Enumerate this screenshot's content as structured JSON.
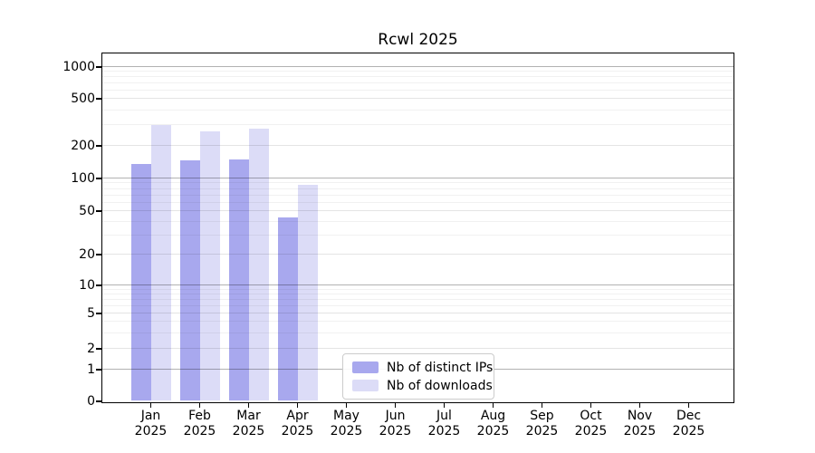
{
  "title": "Rcwl 2025",
  "chart_data": {
    "type": "bar",
    "title": "Rcwl 2025",
    "categories": [
      "Jan",
      "Feb",
      "Mar",
      "Apr",
      "May",
      "Jun",
      "Jul",
      "Aug",
      "Sep",
      "Oct",
      "Nov",
      "Dec"
    ],
    "x_year": "2025",
    "series": [
      {
        "name": "Nb of distinct IPs",
        "color": "#a8a8ee",
        "values": [
          133,
          144,
          147,
          43,
          0,
          0,
          0,
          0,
          0,
          0,
          0,
          0
        ]
      },
      {
        "name": "Nb of downloads",
        "color": "#dcdcf7",
        "values": [
          295,
          260,
          275,
          85,
          0,
          0,
          0,
          0,
          0,
          0,
          0,
          0
        ]
      }
    ],
    "yscale": "symlog",
    "yticks": [
      0,
      1,
      2,
      5,
      10,
      20,
      50,
      100,
      200,
      500,
      1000
    ],
    "ylim": [
      0,
      1300
    ],
    "grid": "both",
    "legend_position": "lower-center",
    "colors": {
      "bar_distinct_ips": "#a8a8ee",
      "bar_downloads": "#dcdcf7",
      "grid_decade": "#b2b2b2",
      "grid_mid": "#e4e4e4",
      "grid_minor": "#f1f1f1",
      "axis": "#000000",
      "background": "#ffffff"
    }
  }
}
